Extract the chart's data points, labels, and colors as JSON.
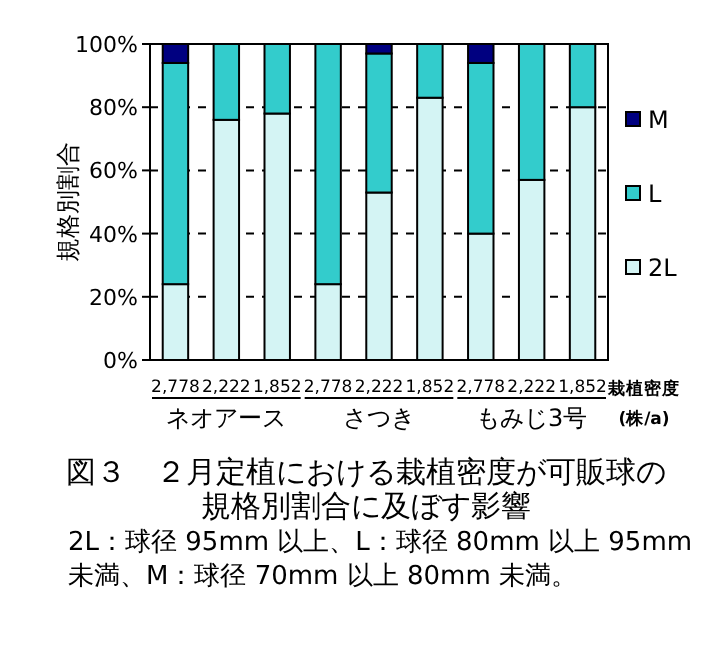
{
  "chart_data": {
    "type": "bar",
    "stacked": true,
    "title": "図３　２月定植における栽植密度が可販球の規格別割合に及ぼす影響",
    "ylabel": "規格別割合",
    "xlabel": "栽植密度(株/a)",
    "categories": [
      "2,778",
      "2,222",
      "1,852",
      "2,778",
      "2,222",
      "1,852",
      "2,778",
      "2,222",
      "1,852"
    ],
    "series": [
      {
        "name": "2L",
        "color": "#d4f4f4",
        "values": [
          24,
          76,
          78,
          24,
          53,
          83,
          40,
          57,
          80
        ]
      },
      {
        "name": "L",
        "color": "#33cccc",
        "values": [
          70,
          24,
          22,
          76,
          44,
          17,
          54,
          43,
          20
        ]
      },
      {
        "name": "M",
        "color": "#000080",
        "values": [
          6,
          0,
          0,
          0,
          3,
          0,
          6,
          0,
          0
        ]
      }
    ],
    "ylim": [
      0,
      100
    ],
    "yticks": [
      {
        "value": 0,
        "label": "0%"
      },
      {
        "value": 20,
        "label": "20%"
      },
      {
        "value": 40,
        "label": "40%"
      },
      {
        "value": 60,
        "label": "60%"
      },
      {
        "value": 80,
        "label": "80%"
      },
      {
        "value": 100,
        "label": "100%"
      }
    ],
    "grid": "y",
    "legend": "right",
    "annotations": [
      "ネオアース",
      "さつき",
      "もみじ3号",
      "2L：球径 95mm 以上、L：球径 80mm 以上 95mm 未満、M：球径 70mm 以上 80mm 未満。"
    ]
  }
}
